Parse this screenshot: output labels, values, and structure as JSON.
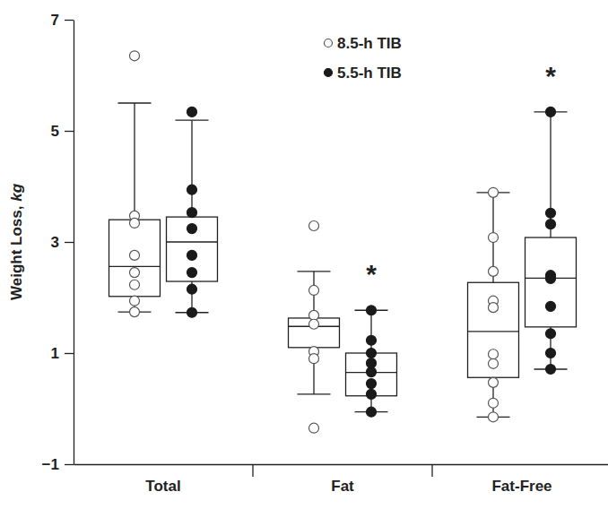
{
  "chart_data": {
    "type": "box",
    "y_label": "Weight Loss, kg",
    "categories": [
      "Total",
      "Fat",
      "Fat-Free"
    ],
    "ylim": [
      -1,
      7
    ],
    "yticks": [
      {
        "value": -1,
        "label": "−1"
      },
      1,
      3,
      5,
      7
    ],
    "legend": "top",
    "series": [
      {
        "name": "8.5-h TIB",
        "color": "#555555",
        "marker": "open",
        "boxes": [
          {
            "whisker_low": 1.74,
            "q1": 2.02,
            "median": 2.56,
            "q3": 3.4,
            "whisker_high": 5.5,
            "points": [
              6.35,
              3.47,
              3.34,
              2.76,
              2.45,
              2.23,
              1.94,
              1.74
            ]
          },
          {
            "whisker_low": 0.26,
            "q1": 1.1,
            "median": 1.48,
            "q3": 1.63,
            "whisker_high": 2.47,
            "points": [
              3.29,
              2.13,
              1.68,
              1.52,
              1.03,
              0.9,
              -0.35
            ]
          },
          {
            "whisker_low": -0.15,
            "q1": 0.56,
            "median": 1.39,
            "q3": 2.27,
            "whisker_high": 3.89,
            "points": [
              3.89,
              3.08,
              2.47,
              1.94,
              1.82,
              0.98,
              0.81,
              0.47,
              0.1,
              -0.15
            ]
          }
        ]
      },
      {
        "name": "5.5-h TIB",
        "color": "#1a1a1a",
        "marker": "filled",
        "boxes": [
          {
            "whisker_low": 1.73,
            "q1": 2.29,
            "median": 3.0,
            "q3": 3.45,
            "whisker_high": 5.19,
            "points": [
              5.34,
              3.94,
              3.53,
              3.24,
              2.76,
              2.45,
              2.15,
              1.73
            ]
          },
          {
            "whisker_low": -0.06,
            "q1": 0.23,
            "median": 0.65,
            "q3": 1.0,
            "whisker_high": 1.77,
            "points": [
              1.77,
              1.23,
              1.0,
              0.82,
              0.66,
              0.45,
              0.26,
              -0.06
            ]
          },
          {
            "whisker_low": 0.71,
            "q1": 1.47,
            "median": 2.35,
            "q3": 3.08,
            "whisker_high": 5.34,
            "points": [
              5.34,
              3.52,
              3.32,
              2.4,
              2.34,
              1.84,
              1.35,
              1.0,
              0.71
            ]
          }
        ]
      }
    ],
    "annotations": [
      {
        "text": "*",
        "category": "Fat",
        "series": "5.5-h TIB"
      },
      {
        "text": "*",
        "category": "Fat-Free",
        "series": "5.5-h TIB"
      }
    ]
  }
}
